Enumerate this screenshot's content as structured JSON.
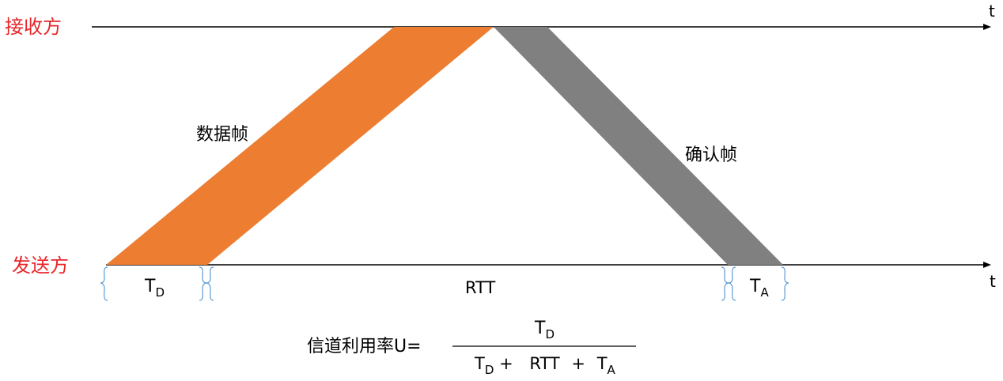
{
  "diagram": {
    "time_axis_label": "t",
    "receiver_label": "接收方",
    "sender_label": "发送方",
    "data_frame_label": "数据帧",
    "ack_frame_label": "确认帧",
    "td": {
      "base": "T",
      "sub": "D"
    },
    "rtt_label": "RTT",
    "ta": {
      "base": "T",
      "sub": "A"
    },
    "formula": {
      "lhs": "信道利用率U=",
      "numerator": {
        "base": "T",
        "sub": "D"
      },
      "denominator": {
        "td_base": "T",
        "td_sub": "D",
        "plus1": "+",
        "rtt": "RTT",
        "plus2": "+",
        "ta_base": "T",
        "ta_sub": "A"
      }
    }
  },
  "colors": {
    "data_frame": "#ed7d31",
    "ack_frame": "#808080",
    "brace": "#5b9bd5",
    "party_label": "#e8262a"
  }
}
